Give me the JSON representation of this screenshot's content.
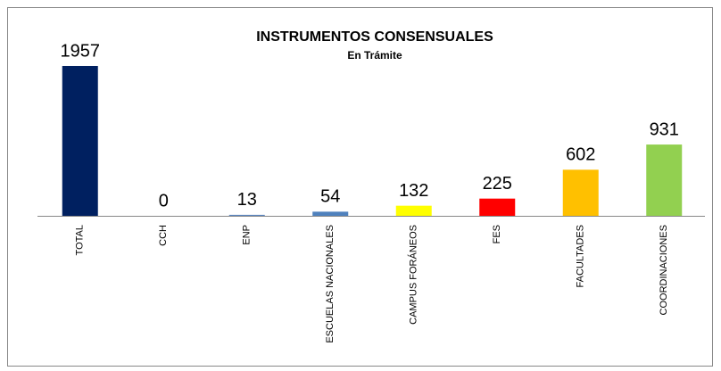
{
  "chart_data": {
    "type": "bar",
    "title": "INSTRUMENTOS CONSENSUALES",
    "subtitle": "En Trámite",
    "categories": [
      "TOTAL",
      "CCH",
      "ENP",
      "ESCUELAS NACIONALES",
      "CAMPUS FORÁNEOS",
      "FES",
      "FACULTADES",
      "COORDINACIONES"
    ],
    "values": [
      1957,
      0,
      13,
      54,
      132,
      225,
      602,
      931
    ],
    "colors": [
      "#002060",
      "#4f81bd",
      "#5b86c0",
      "#4f81bd",
      "#ffff00",
      "#ff0000",
      "#ffc000",
      "#92d050"
    ],
    "ylim": [
      0,
      2000
    ]
  }
}
